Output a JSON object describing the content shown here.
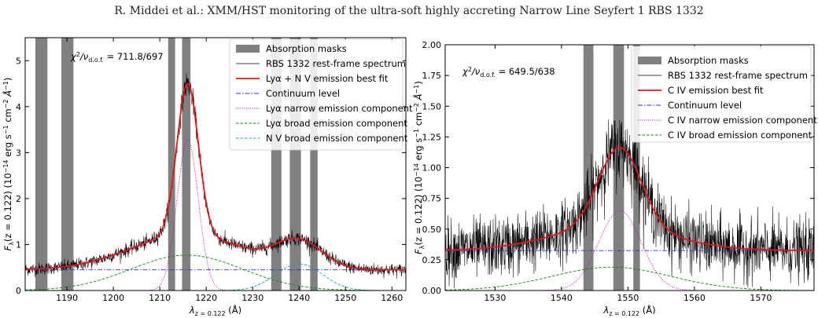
{
  "header": {
    "running_head": "R. Middei  et al.: XMM/HST monitoring of the ultra-soft highly accreting Narrow Line Seyfert 1 RBS 1332"
  },
  "chart_data": [
    {
      "type": "line",
      "panel": "left",
      "xlabel": "λz = 0.122 (Å)",
      "xlabel_base": "λ",
      "xlabel_sub": "z = 0.122",
      "xlabel_unit": " (Å)",
      "ylabel": "Fλ(z = 0.122) (10−14 erg s−1 cm−2 Å−1)",
      "xlim": [
        1181,
        1263
      ],
      "ylim": [
        0,
        5.5
      ],
      "xticks": [
        1190,
        1200,
        1210,
        1220,
        1230,
        1240,
        1250,
        1260
      ],
      "yticks": [
        0,
        1,
        2,
        3,
        4,
        5
      ],
      "annotation": "χ2/νd.o.f. = 711.8/697",
      "annotation_value": " = 711.8/697",
      "absorption_masks": [
        [
          1183.2,
          1185.8
        ],
        [
          1188.8,
          1191.4
        ],
        [
          1211.8,
          1213.3
        ],
        [
          1214.8,
          1216.6
        ],
        [
          1234.0,
          1236.2
        ],
        [
          1238.0,
          1240.4
        ],
        [
          1242.4,
          1244.0
        ]
      ],
      "continuum_level": 0.45,
      "components": [
        {
          "name": "Lyα narrow emission component",
          "center": 1216.0,
          "sigma": 2.3,
          "amplitude": 3.28
        },
        {
          "name": "Lyα broad emission component",
          "center": 1215.8,
          "sigma": 12.0,
          "amplitude": 0.77
        },
        {
          "name": "N V broad emission component",
          "center": 1240.0,
          "sigma": 5.0,
          "amplitude": 0.58
        }
      ],
      "noise_level": 0.06,
      "legend_position": "upper right",
      "legend": [
        {
          "label": "Absorption masks",
          "style": "mask",
          "color": "#808080"
        },
        {
          "label": "RBS 1332 rest-frame spectrum",
          "style": "thin",
          "color": "#000000"
        },
        {
          "label": "Lyα + N V emission best fit",
          "style": "solid",
          "color": "#e8141a"
        },
        {
          "label": "Continuum level",
          "style": "dashdot",
          "color": "#2b2bd8"
        },
        {
          "label": "Lyα narrow emission component",
          "style": "dotted",
          "color": "#c000c0"
        },
        {
          "label": "Lyα broad emission component",
          "style": "dashed",
          "color": "#118811"
        },
        {
          "label": "N V broad emission component",
          "style": "dashed",
          "color": "#19a6b4"
        }
      ]
    },
    {
      "type": "line",
      "panel": "right",
      "xlabel": "λz = 0.122 (Å)",
      "xlabel_base": "λ",
      "xlabel_sub": "z = 0.122",
      "xlabel_unit": " (Å)",
      "ylabel": "Fλ(z = 0.122) (10−14 erg s−1 cm−2 Å−1)",
      "xlim": [
        1522.5,
        1578
      ],
      "ylim": [
        0,
        2.0
      ],
      "xticks": [
        1530,
        1540,
        1550,
        1560,
        1570
      ],
      "yticks": [
        0.0,
        0.25,
        0.5,
        0.75,
        1.0,
        1.25,
        1.5,
        1.75,
        2.0
      ],
      "annotation": "χ2/νd.o.f. = 649.5/638",
      "annotation_value": " = 649.5/638",
      "absorption_masks": [
        [
          1543.3,
          1544.8
        ],
        [
          1547.8,
          1549.4
        ],
        [
          1550.8,
          1551.8
        ]
      ],
      "continuum_level": 0.325,
      "components": [
        {
          "name": "C IV narrow emission component",
          "center": 1548.8,
          "sigma": 3.2,
          "amplitude": 0.65
        },
        {
          "name": "C IV broad emission component",
          "center": 1547.5,
          "sigma": 9.0,
          "amplitude": 0.19
        }
      ],
      "noise_level": 0.11,
      "legend_position": "upper right",
      "legend": [
        {
          "label": "Absorption masks",
          "style": "mask",
          "color": "#808080"
        },
        {
          "label": "RBS 1332 rest-frame spectrum",
          "style": "thin",
          "color": "#000000"
        },
        {
          "label": "C IV emission best fit",
          "style": "solid",
          "color": "#e8141a"
        },
        {
          "label": "Continuum level",
          "style": "dashdot",
          "color": "#2b2bd8"
        },
        {
          "label": "C IV narrow emission component",
          "style": "dotted",
          "color": "#c000c0"
        },
        {
          "label": "C IV broad emission component",
          "style": "dashed",
          "color": "#118811"
        }
      ]
    }
  ]
}
